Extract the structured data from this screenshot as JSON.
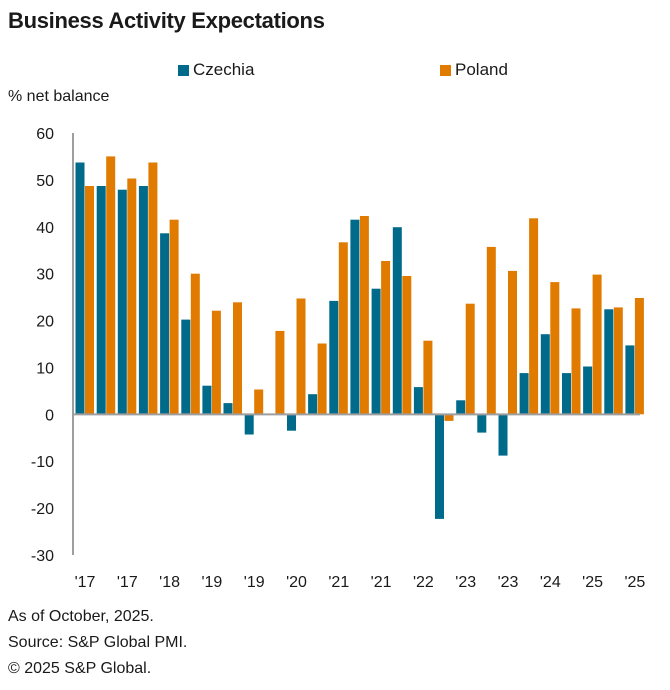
{
  "chart_data": {
    "type": "bar",
    "title": "Business Activity Expectations",
    "xlabel": "",
    "ylabel": "% net balance",
    "ylim": [
      -30,
      60
    ],
    "yticks": [
      60,
      50,
      40,
      30,
      20,
      10,
      0,
      -10,
      -20,
      -30
    ],
    "grid": false,
    "legend_position": "top",
    "categories": [
      "'17",
      "",
      "'17",
      "",
      "'18",
      "",
      "'19",
      "",
      "'19",
      "",
      "'20",
      "",
      "'21",
      "",
      "'21",
      "",
      "'22",
      "",
      "'23",
      "",
      "'23",
      "",
      "'24",
      "",
      "'25",
      "",
      "'25"
    ],
    "xtick_labels": [
      "'17",
      "'17",
      "'18",
      "'19",
      "'19",
      "'20",
      "'21",
      "'21",
      "'22",
      "'23",
      "'23",
      "'24",
      "'25",
      "'25"
    ],
    "series": [
      {
        "name": "Czechia",
        "color": "#006a8a",
        "values": [
          53.7,
          48.7,
          47.9,
          48.7,
          38.6,
          20.2,
          6.1,
          2.4,
          -4.3,
          0,
          -3.5,
          4.3,
          24.2,
          41.5,
          26.8,
          39.9,
          5.8,
          -22.3,
          3.0,
          -3.9,
          -8.8,
          8.8,
          17.1,
          8.8,
          10.2,
          22.4,
          14.7
        ]
      },
      {
        "name": "Poland",
        "color": "#e07b00",
        "values": [
          48.7,
          55.0,
          50.3,
          53.7,
          41.5,
          30.0,
          22.1,
          23.9,
          5.3,
          17.8,
          24.7,
          15.1,
          36.7,
          42.3,
          32.7,
          29.5,
          15.7,
          -1.4,
          23.6,
          35.7,
          30.6,
          41.8,
          28.2,
          22.6,
          29.8,
          22.8,
          24.8
        ]
      }
    ]
  },
  "legend": [
    {
      "label": "Czechia",
      "color": "#006a8a"
    },
    {
      "label": "Poland",
      "color": "#e07b00"
    }
  ],
  "footer": {
    "as_of": "As of October, 2025.",
    "source": "Source: S&P Global PMI.",
    "copyright": "© 2025 S&P Global."
  }
}
